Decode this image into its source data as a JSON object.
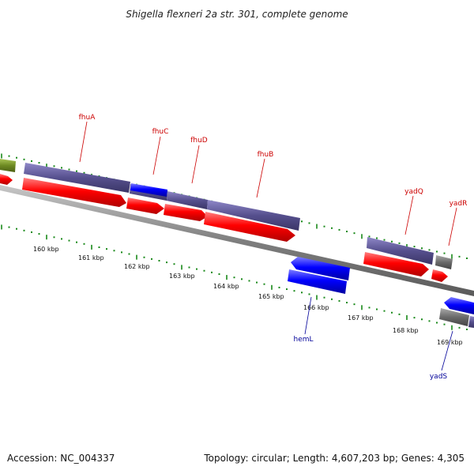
{
  "title": "Shigella flexneri 2a str. 301, complete genome",
  "footer": {
    "accession": "Accession: NC_004337",
    "summary": "Topology: circular; Length: 4,607,203 bp; Genes: 4,305"
  },
  "colors": {
    "forward_cds": "#ff0000",
    "reverse_cds": "#0000ff",
    "forward_gene": "#56508e",
    "reverse_gene": "#6a6a6a",
    "unknown_gene": "#6e8a22",
    "ticks": "#1a8a1a",
    "backbone": "#7f7f7f",
    "forward_label": "#cc0000",
    "reverse_label": "#000099"
  },
  "ticks": {
    "labels": [
      "160 kbp",
      "161 kbp",
      "162 kbp",
      "163 kbp",
      "164 kbp",
      "165 kbp",
      "166 kbp",
      "167 kbp",
      "168 kbp",
      "169 kbp"
    ]
  },
  "genes": {
    "forward": [
      "fhuA",
      "fhuC",
      "fhuD",
      "fhuB",
      "yadQ",
      "yadR"
    ],
    "reverse": [
      "hemL",
      "yadS"
    ]
  }
}
